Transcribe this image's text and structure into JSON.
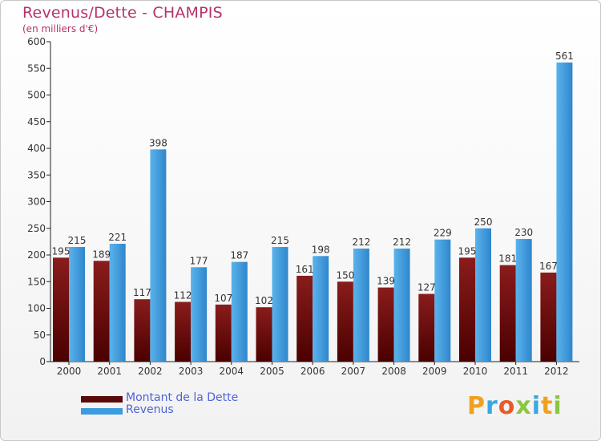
{
  "title": "Revenus/Dette - CHAMPIS",
  "subtitle": "(en milliers d'€)",
  "logo_text": "Proxiti",
  "colors": {
    "title": "#b5336b",
    "dette": "#7a1010",
    "revenus": "#3d9be0",
    "legend_text": "#4f63d6"
  },
  "chart_data": {
    "type": "bar",
    "title": "Revenus/Dette - CHAMPIS",
    "ylabel": "(en milliers d'€)",
    "xlabel": "",
    "categories": [
      "2000",
      "2001",
      "2002",
      "2003",
      "2004",
      "2005",
      "2006",
      "2007",
      "2008",
      "2009",
      "2010",
      "2011",
      "2012"
    ],
    "series": [
      {
        "name": "Montant de la Dette",
        "values": [
          195,
          189,
          117,
          112,
          107,
          102,
          161,
          150,
          139,
          127,
          195,
          181,
          167
        ]
      },
      {
        "name": "Revenus",
        "values": [
          215,
          221,
          398,
          177,
          187,
          215,
          198,
          212,
          212,
          229,
          250,
          230,
          561
        ]
      }
    ],
    "ylim": [
      0,
      600
    ],
    "yticks": [
      0,
      50,
      100,
      150,
      200,
      250,
      300,
      350,
      400,
      450,
      500,
      550,
      600
    ],
    "grid": false,
    "legend": "bottom-left"
  }
}
